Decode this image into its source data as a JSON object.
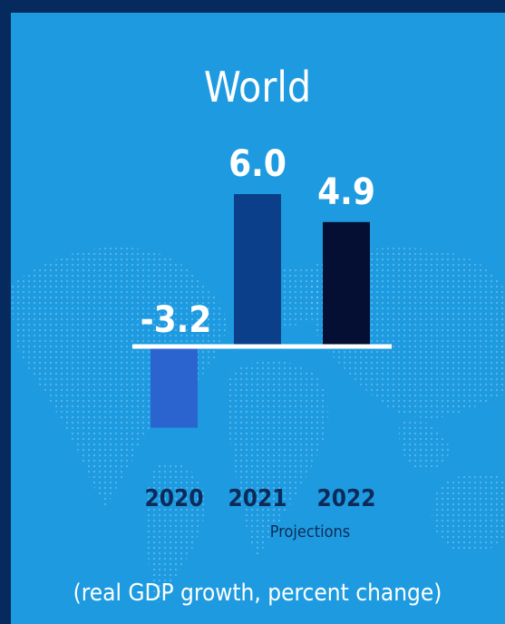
{
  "chart_data": {
    "type": "bar",
    "title": "World",
    "categories": [
      "2020",
      "2021",
      "2022"
    ],
    "values": [
      -3.2,
      6.0,
      4.9
    ],
    "value_labels": [
      "-3.2",
      "6.0",
      "4.9"
    ],
    "bar_colors": [
      "#2b64cf",
      "#0b3f8a",
      "#050f33"
    ],
    "annotation": "Projections",
    "footnote": "(real GDP growth, percent change)",
    "baseline_color": "#ffffff",
    "background": "#1e9be0",
    "frame_color": "#062a5e",
    "ylim": [
      -3.2,
      6.0
    ],
    "grid": false
  }
}
